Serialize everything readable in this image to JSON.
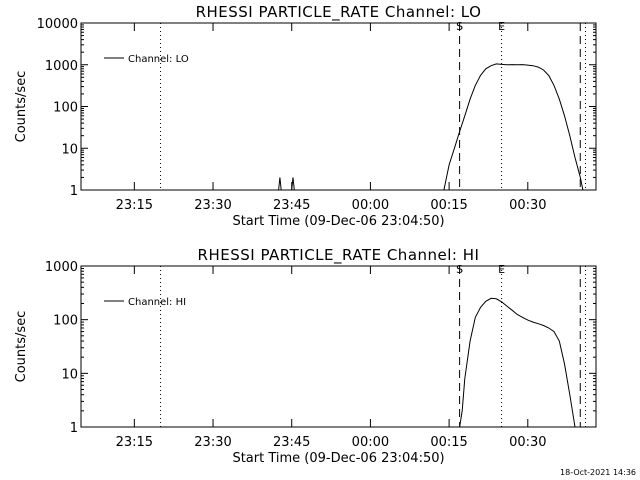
{
  "footer": {
    "timestamp": "18-Oct-2021 14:36"
  },
  "colors": {
    "background": "#ffffff",
    "foreground": "#000000"
  },
  "chart_data": [
    {
      "type": "line",
      "title": "RHESSI PARTICLE_RATE Channel: LO",
      "xlabel": "Start Time (09-Dec-06 23:04:50)",
      "ylabel": "Counts/sec",
      "yscale": "log",
      "ylim": [
        1,
        10000
      ],
      "yticks": [
        1,
        10,
        100,
        1000,
        10000
      ],
      "xticks": [
        "23:15",
        "23:30",
        "23:45",
        "00:00",
        "00:15",
        "00:30"
      ],
      "legend": {
        "position": "top-left",
        "entries": [
          "Channel: LO"
        ]
      },
      "markers": [
        {
          "label": "",
          "time": "23:04:50",
          "style": "dotted"
        },
        {
          "label": "",
          "time": "23:20",
          "style": "dotted"
        },
        {
          "label": "S",
          "time": "00:17",
          "style": "dashed"
        },
        {
          "label": "E",
          "time": "00:25",
          "style": "dotted"
        },
        {
          "label": "",
          "time": "00:40",
          "style": "dashed"
        },
        {
          "label": "",
          "time": "00:41",
          "style": "dotted"
        }
      ],
      "series": [
        {
          "name": "Channel: LO",
          "points": [
            [
              "23:42:30",
              1
            ],
            [
              "23:42:45",
              2
            ],
            [
              "23:43:00",
              1
            ],
            [
              "23:45:00",
              1
            ],
            [
              "23:45:15",
              2
            ],
            [
              "23:45:30",
              1
            ],
            [
              "00:14:00",
              1
            ],
            [
              "00:15:00",
              4
            ],
            [
              "00:16:00",
              10
            ],
            [
              "00:17:00",
              25
            ],
            [
              "00:18:00",
              60
            ],
            [
              "00:19:00",
              150
            ],
            [
              "00:20:00",
              320
            ],
            [
              "00:21:00",
              560
            ],
            [
              "00:22:00",
              800
            ],
            [
              "00:23:00",
              950
            ],
            [
              "00:24:00",
              1050
            ],
            [
              "00:25:00",
              1020
            ],
            [
              "00:26:00",
              1000
            ],
            [
              "00:27:00",
              1010
            ],
            [
              "00:28:00",
              1000
            ],
            [
              "00:29:00",
              1010
            ],
            [
              "00:30:00",
              980
            ],
            [
              "00:31:00",
              950
            ],
            [
              "00:32:00",
              880
            ],
            [
              "00:33:00",
              750
            ],
            [
              "00:34:00",
              550
            ],
            [
              "00:35:00",
              320
            ],
            [
              "00:36:00",
              150
            ],
            [
              "00:37:00",
              60
            ],
            [
              "00:38:00",
              20
            ],
            [
              "00:39:00",
              6
            ],
            [
              "00:40:00",
              2
            ],
            [
              "00:40:30",
              1
            ]
          ]
        }
      ]
    },
    {
      "type": "line",
      "title": "RHESSI PARTICLE_RATE Channel: HI",
      "xlabel": "Start Time (09-Dec-06 23:04:50)",
      "ylabel": "Counts/sec",
      "yscale": "log",
      "ylim": [
        1,
        1000
      ],
      "yticks": [
        1,
        10,
        100,
        1000
      ],
      "xticks": [
        "23:15",
        "23:30",
        "23:45",
        "00:00",
        "00:15",
        "00:30"
      ],
      "legend": {
        "position": "top-left",
        "entries": [
          "Channel: HI"
        ]
      },
      "markers": [
        {
          "label": "",
          "time": "23:04:50",
          "style": "dotted"
        },
        {
          "label": "",
          "time": "23:20",
          "style": "dotted"
        },
        {
          "label": "S",
          "time": "00:17",
          "style": "dashed"
        },
        {
          "label": "E",
          "time": "00:25",
          "style": "dotted"
        },
        {
          "label": "",
          "time": "00:40",
          "style": "dashed"
        },
        {
          "label": "",
          "time": "00:41",
          "style": "dotted"
        }
      ],
      "series": [
        {
          "name": "Channel: HI",
          "points": [
            [
              "00:17:00",
              1
            ],
            [
              "00:17:30",
              2
            ],
            [
              "00:18:00",
              8
            ],
            [
              "00:19:00",
              40
            ],
            [
              "00:20:00",
              110
            ],
            [
              "00:21:00",
              170
            ],
            [
              "00:22:00",
              220
            ],
            [
              "00:23:00",
              250
            ],
            [
              "00:24:00",
              245
            ],
            [
              "00:25:00",
              215
            ],
            [
              "00:26:00",
              180
            ],
            [
              "00:27:00",
              150
            ],
            [
              "00:28:00",
              125
            ],
            [
              "00:29:00",
              110
            ],
            [
              "00:30:00",
              98
            ],
            [
              "00:31:00",
              90
            ],
            [
              "00:32:00",
              84
            ],
            [
              "00:33:00",
              78
            ],
            [
              "00:34:00",
              70
            ],
            [
              "00:35:00",
              60
            ],
            [
              "00:36:00",
              40
            ],
            [
              "00:37:00",
              15
            ],
            [
              "00:38:00",
              4
            ],
            [
              "00:38:30",
              2
            ],
            [
              "00:39:00",
              1
            ]
          ]
        }
      ]
    }
  ]
}
